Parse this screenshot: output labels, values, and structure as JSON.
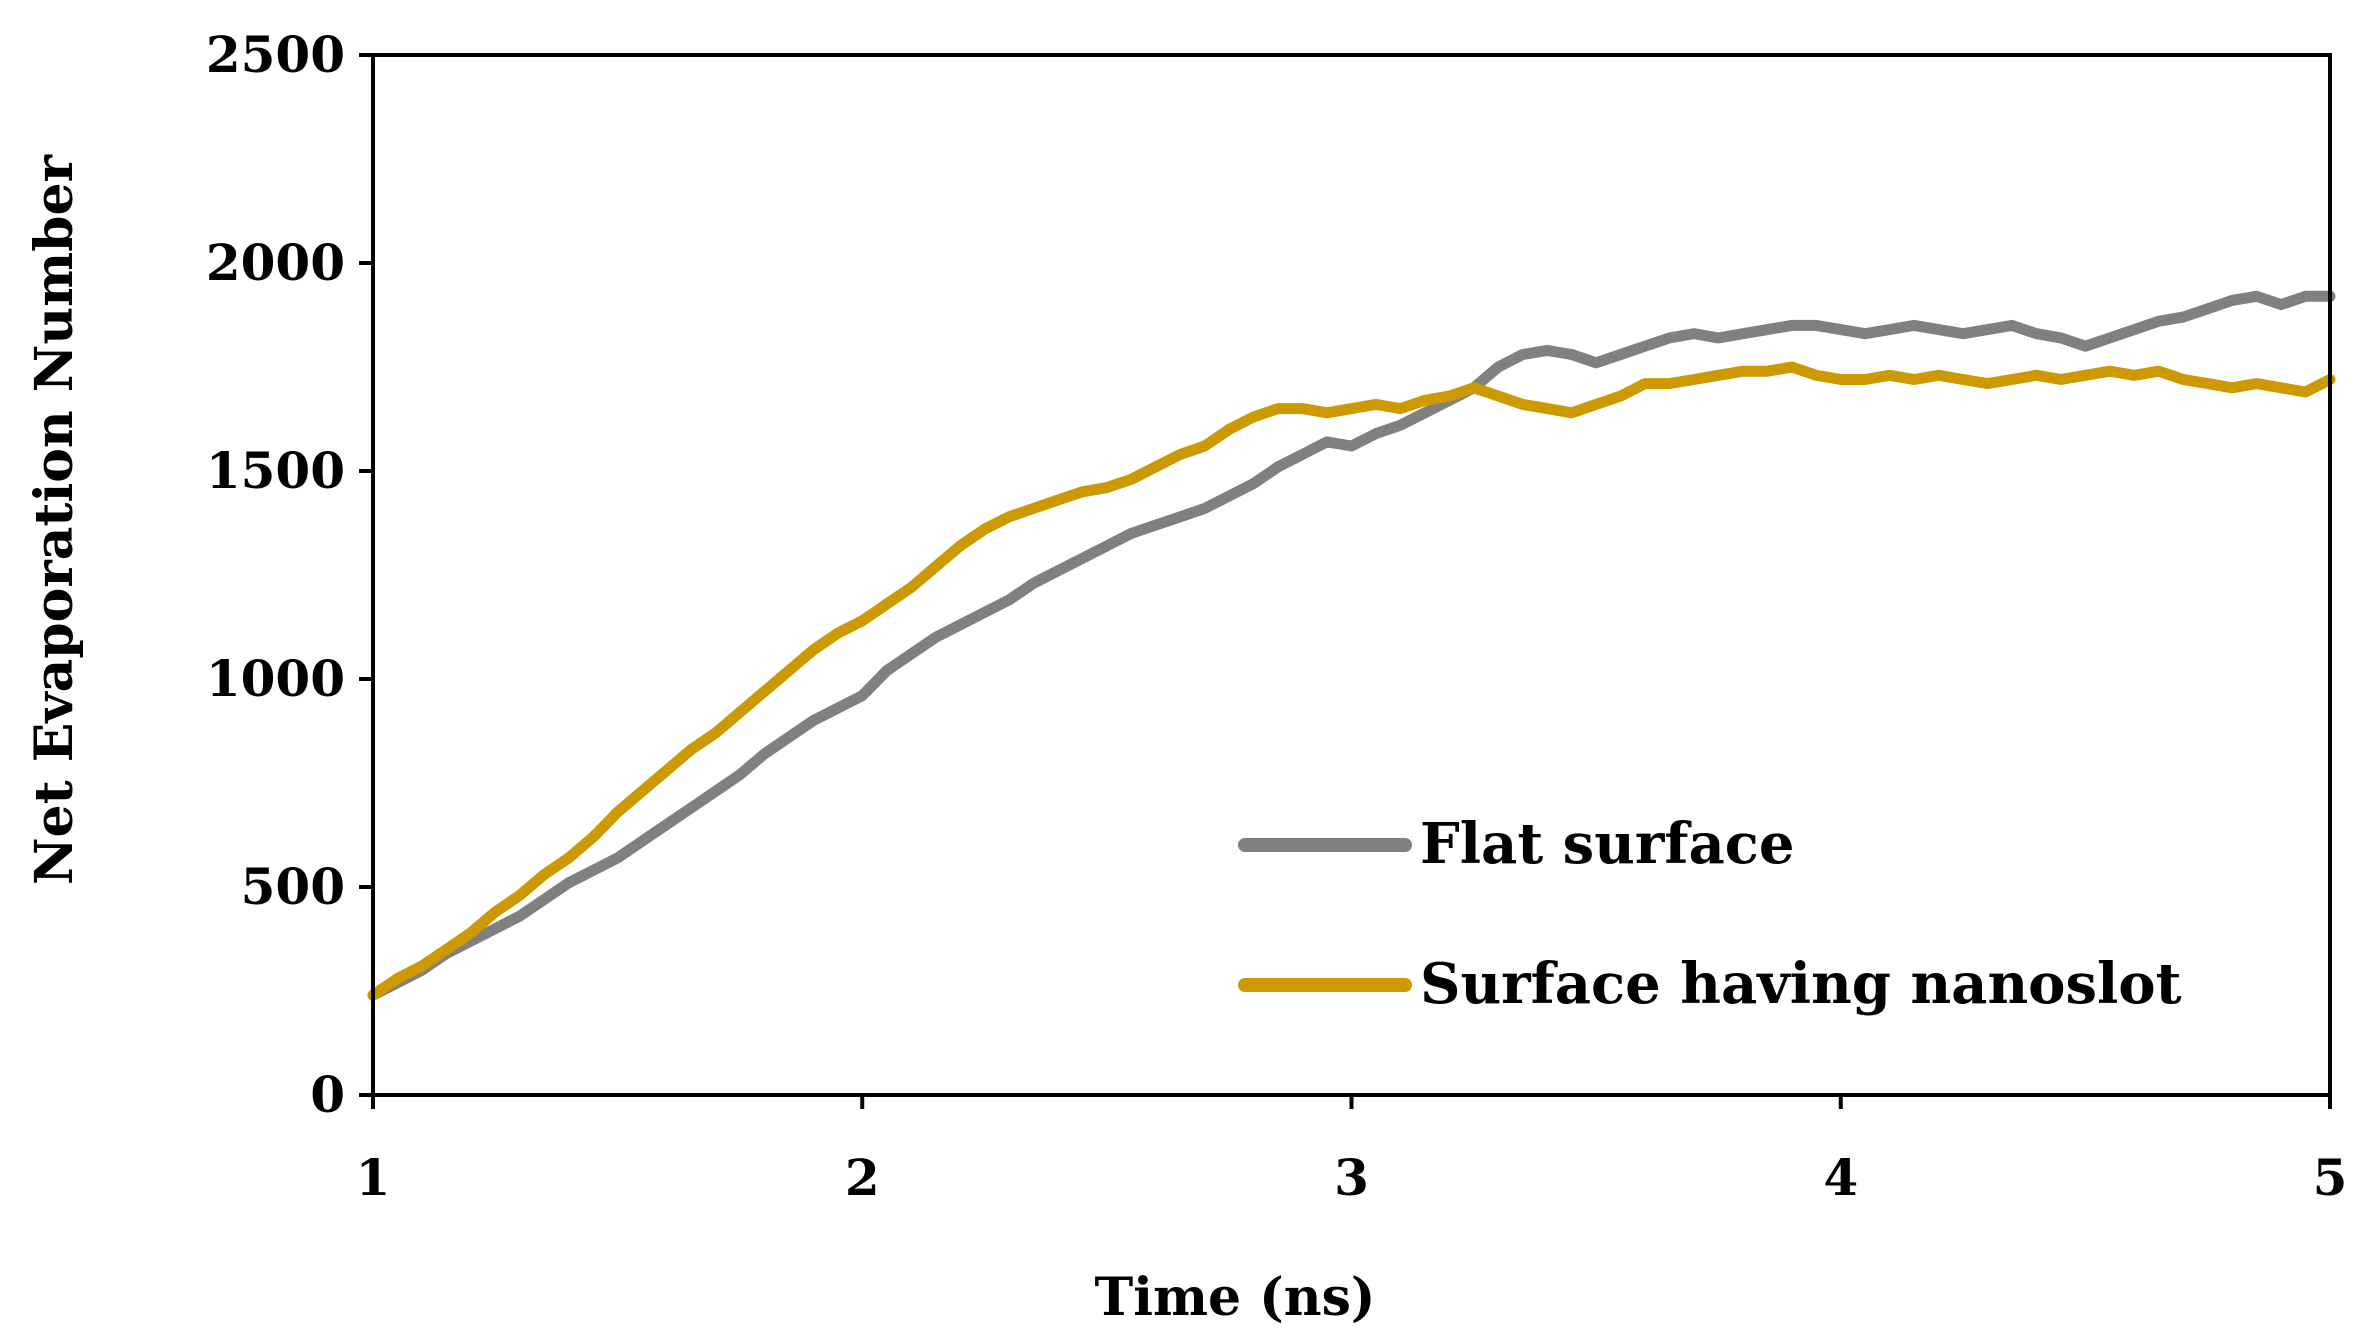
{
  "chart_data": {
    "type": "line",
    "title": "",
    "xlabel": "Time (ns)",
    "ylabel": "Net Evaporation Number",
    "xlim": [
      1,
      5
    ],
    "ylim": [
      0,
      2500
    ],
    "xticks": [
      "1",
      "2",
      "3",
      "4",
      "5"
    ],
    "yticks": [
      "0",
      "500",
      "1000",
      "1500",
      "2000",
      "2500"
    ],
    "grid": false,
    "legend_position": "bottom-right",
    "series": [
      {
        "name": "Flat surface",
        "color": "#808080",
        "x": [
          1.0,
          1.05,
          1.1,
          1.15,
          1.2,
          1.25,
          1.3,
          1.35,
          1.4,
          1.45,
          1.5,
          1.55,
          1.6,
          1.65,
          1.7,
          1.75,
          1.8,
          1.85,
          1.9,
          1.95,
          2.0,
          2.05,
          2.1,
          2.15,
          2.2,
          2.25,
          2.3,
          2.35,
          2.4,
          2.45,
          2.5,
          2.55,
          2.6,
          2.65,
          2.7,
          2.75,
          2.8,
          2.85,
          2.9,
          2.95,
          3.0,
          3.05,
          3.1,
          3.15,
          3.2,
          3.25,
          3.3,
          3.35,
          3.4,
          3.45,
          3.5,
          3.55,
          3.6,
          3.65,
          3.7,
          3.75,
          3.8,
          3.85,
          3.9,
          3.95,
          4.0,
          4.05,
          4.1,
          4.15,
          4.2,
          4.25,
          4.3,
          4.35,
          4.4,
          4.45,
          4.5,
          4.55,
          4.6,
          4.65,
          4.7,
          4.75,
          4.8,
          4.85,
          4.9,
          4.95,
          5.0
        ],
        "values": [
          240,
          270,
          300,
          340,
          370,
          400,
          430,
          470,
          510,
          540,
          570,
          610,
          650,
          690,
          730,
          770,
          820,
          860,
          900,
          930,
          960,
          1020,
          1060,
          1100,
          1130,
          1160,
          1190,
          1230,
          1260,
          1290,
          1320,
          1350,
          1370,
          1390,
          1410,
          1440,
          1470,
          1510,
          1540,
          1570,
          1560,
          1590,
          1610,
          1640,
          1670,
          1700,
          1750,
          1780,
          1790,
          1780,
          1760,
          1780,
          1800,
          1820,
          1830,
          1820,
          1830,
          1840,
          1850,
          1850,
          1840,
          1830,
          1840,
          1850,
          1840,
          1830,
          1840,
          1850,
          1830,
          1820,
          1800,
          1820,
          1840,
          1860,
          1870,
          1890,
          1910,
          1920,
          1900,
          1920,
          1920
        ]
      },
      {
        "name": "Surface having nanoslot",
        "color": "#CC9900",
        "x": [
          1.0,
          1.05,
          1.1,
          1.15,
          1.2,
          1.25,
          1.3,
          1.35,
          1.4,
          1.45,
          1.5,
          1.55,
          1.6,
          1.65,
          1.7,
          1.75,
          1.8,
          1.85,
          1.9,
          1.95,
          2.0,
          2.05,
          2.1,
          2.15,
          2.2,
          2.25,
          2.3,
          2.35,
          2.4,
          2.45,
          2.5,
          2.55,
          2.6,
          2.65,
          2.7,
          2.75,
          2.8,
          2.85,
          2.9,
          2.95,
          3.0,
          3.05,
          3.1,
          3.15,
          3.2,
          3.25,
          3.3,
          3.35,
          3.4,
          3.45,
          3.5,
          3.55,
          3.6,
          3.65,
          3.7,
          3.75,
          3.8,
          3.85,
          3.9,
          3.95,
          4.0,
          4.05,
          4.1,
          4.15,
          4.2,
          4.25,
          4.3,
          4.35,
          4.4,
          4.45,
          4.5,
          4.55,
          4.6,
          4.65,
          4.7,
          4.75,
          4.8,
          4.85,
          4.9,
          4.95,
          5.0
        ],
        "values": [
          240,
          280,
          310,
          350,
          390,
          440,
          480,
          530,
          570,
          620,
          680,
          730,
          780,
          830,
          870,
          920,
          970,
          1020,
          1070,
          1110,
          1140,
          1180,
          1220,
          1270,
          1320,
          1360,
          1390,
          1410,
          1430,
          1450,
          1460,
          1480,
          1510,
          1540,
          1560,
          1600,
          1630,
          1650,
          1650,
          1640,
          1650,
          1660,
          1650,
          1670,
          1680,
          1700,
          1680,
          1660,
          1650,
          1640,
          1660,
          1680,
          1710,
          1710,
          1720,
          1730,
          1740,
          1740,
          1750,
          1730,
          1720,
          1720,
          1730,
          1720,
          1730,
          1720,
          1710,
          1720,
          1730,
          1720,
          1730,
          1740,
          1730,
          1740,
          1720,
          1710,
          1700,
          1710,
          1700,
          1690,
          1720
        ]
      }
    ]
  }
}
